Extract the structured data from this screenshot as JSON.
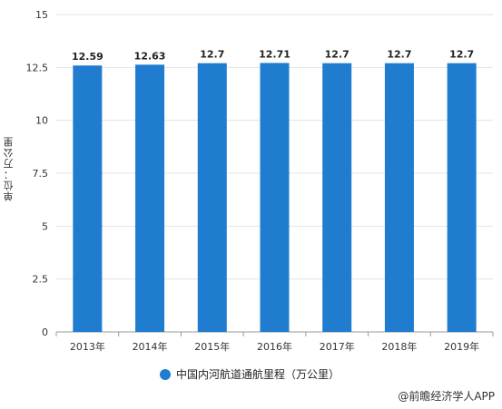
{
  "chart_data": {
    "type": "bar",
    "categories": [
      "2013年",
      "2014年",
      "2015年",
      "2016年",
      "2017年",
      "2018年",
      "2019年"
    ],
    "values": [
      12.59,
      12.63,
      12.7,
      12.71,
      12.7,
      12.7,
      12.7
    ],
    "data_labels": [
      "12.59",
      "12.63",
      "12.7",
      "12.71",
      "12.7",
      "12.7",
      "12.7"
    ],
    "ylabel": "单位：万公里",
    "ylim": [
      0,
      15
    ],
    "yticks": [
      "0",
      "2.5",
      "5",
      "7.5",
      "10",
      "12.5",
      "15"
    ],
    "grid": true,
    "legend": {
      "position": "bottom",
      "entries": [
        "中国内河航道通航里程（万公里）"
      ]
    },
    "bar_color": "#1f7ccf"
  },
  "source_text": "@前瞻经济学人APP"
}
